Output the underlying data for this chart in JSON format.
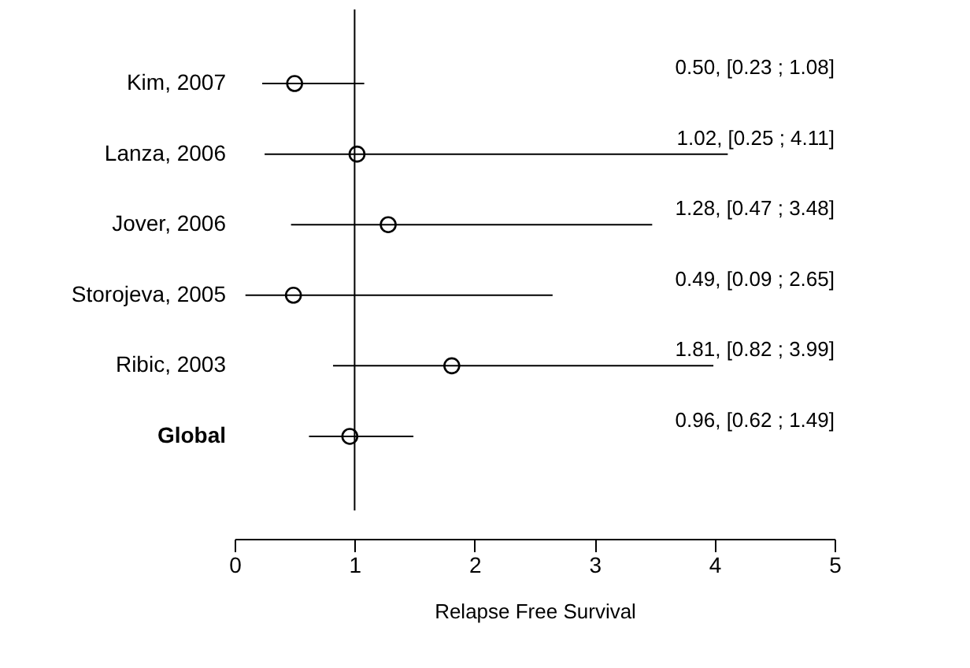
{
  "chart_data": {
    "type": "scatter",
    "orientation": "horizontal",
    "xlabel": "Relapse Free Survival",
    "categories": [
      "Kim, 2007",
      "Lanza, 2006",
      "Jover, 2006",
      "Storojeva, 2005",
      "Ribic, 2003",
      "Global"
    ],
    "values": [
      0.5,
      1.02,
      1.28,
      0.49,
      1.81,
      0.96
    ],
    "errors": [
      [
        0.23,
        1.08
      ],
      [
        0.25,
        4.11
      ],
      [
        0.47,
        3.48
      ],
      [
        0.09,
        2.65
      ],
      [
        0.82,
        3.99
      ],
      [
        0.62,
        1.49
      ]
    ],
    "annotations": [
      "0.50, [0.23 ; 1.08]",
      "1.02, [0.25 ; 4.11]",
      "1.28, [0.47 ; 3.48]",
      "0.49, [0.09 ; 2.65]",
      "1.81, [0.82 ; 3.99]",
      "0.96, [0.62 ; 1.49]"
    ],
    "color": "#000000",
    "marker": "circle",
    "xlim": [
      0,
      5
    ],
    "xticks": [
      0,
      1,
      2,
      3,
      4,
      5
    ],
    "ref_lines": [
      {
        "axis": "x",
        "value": 1
      }
    ]
  }
}
